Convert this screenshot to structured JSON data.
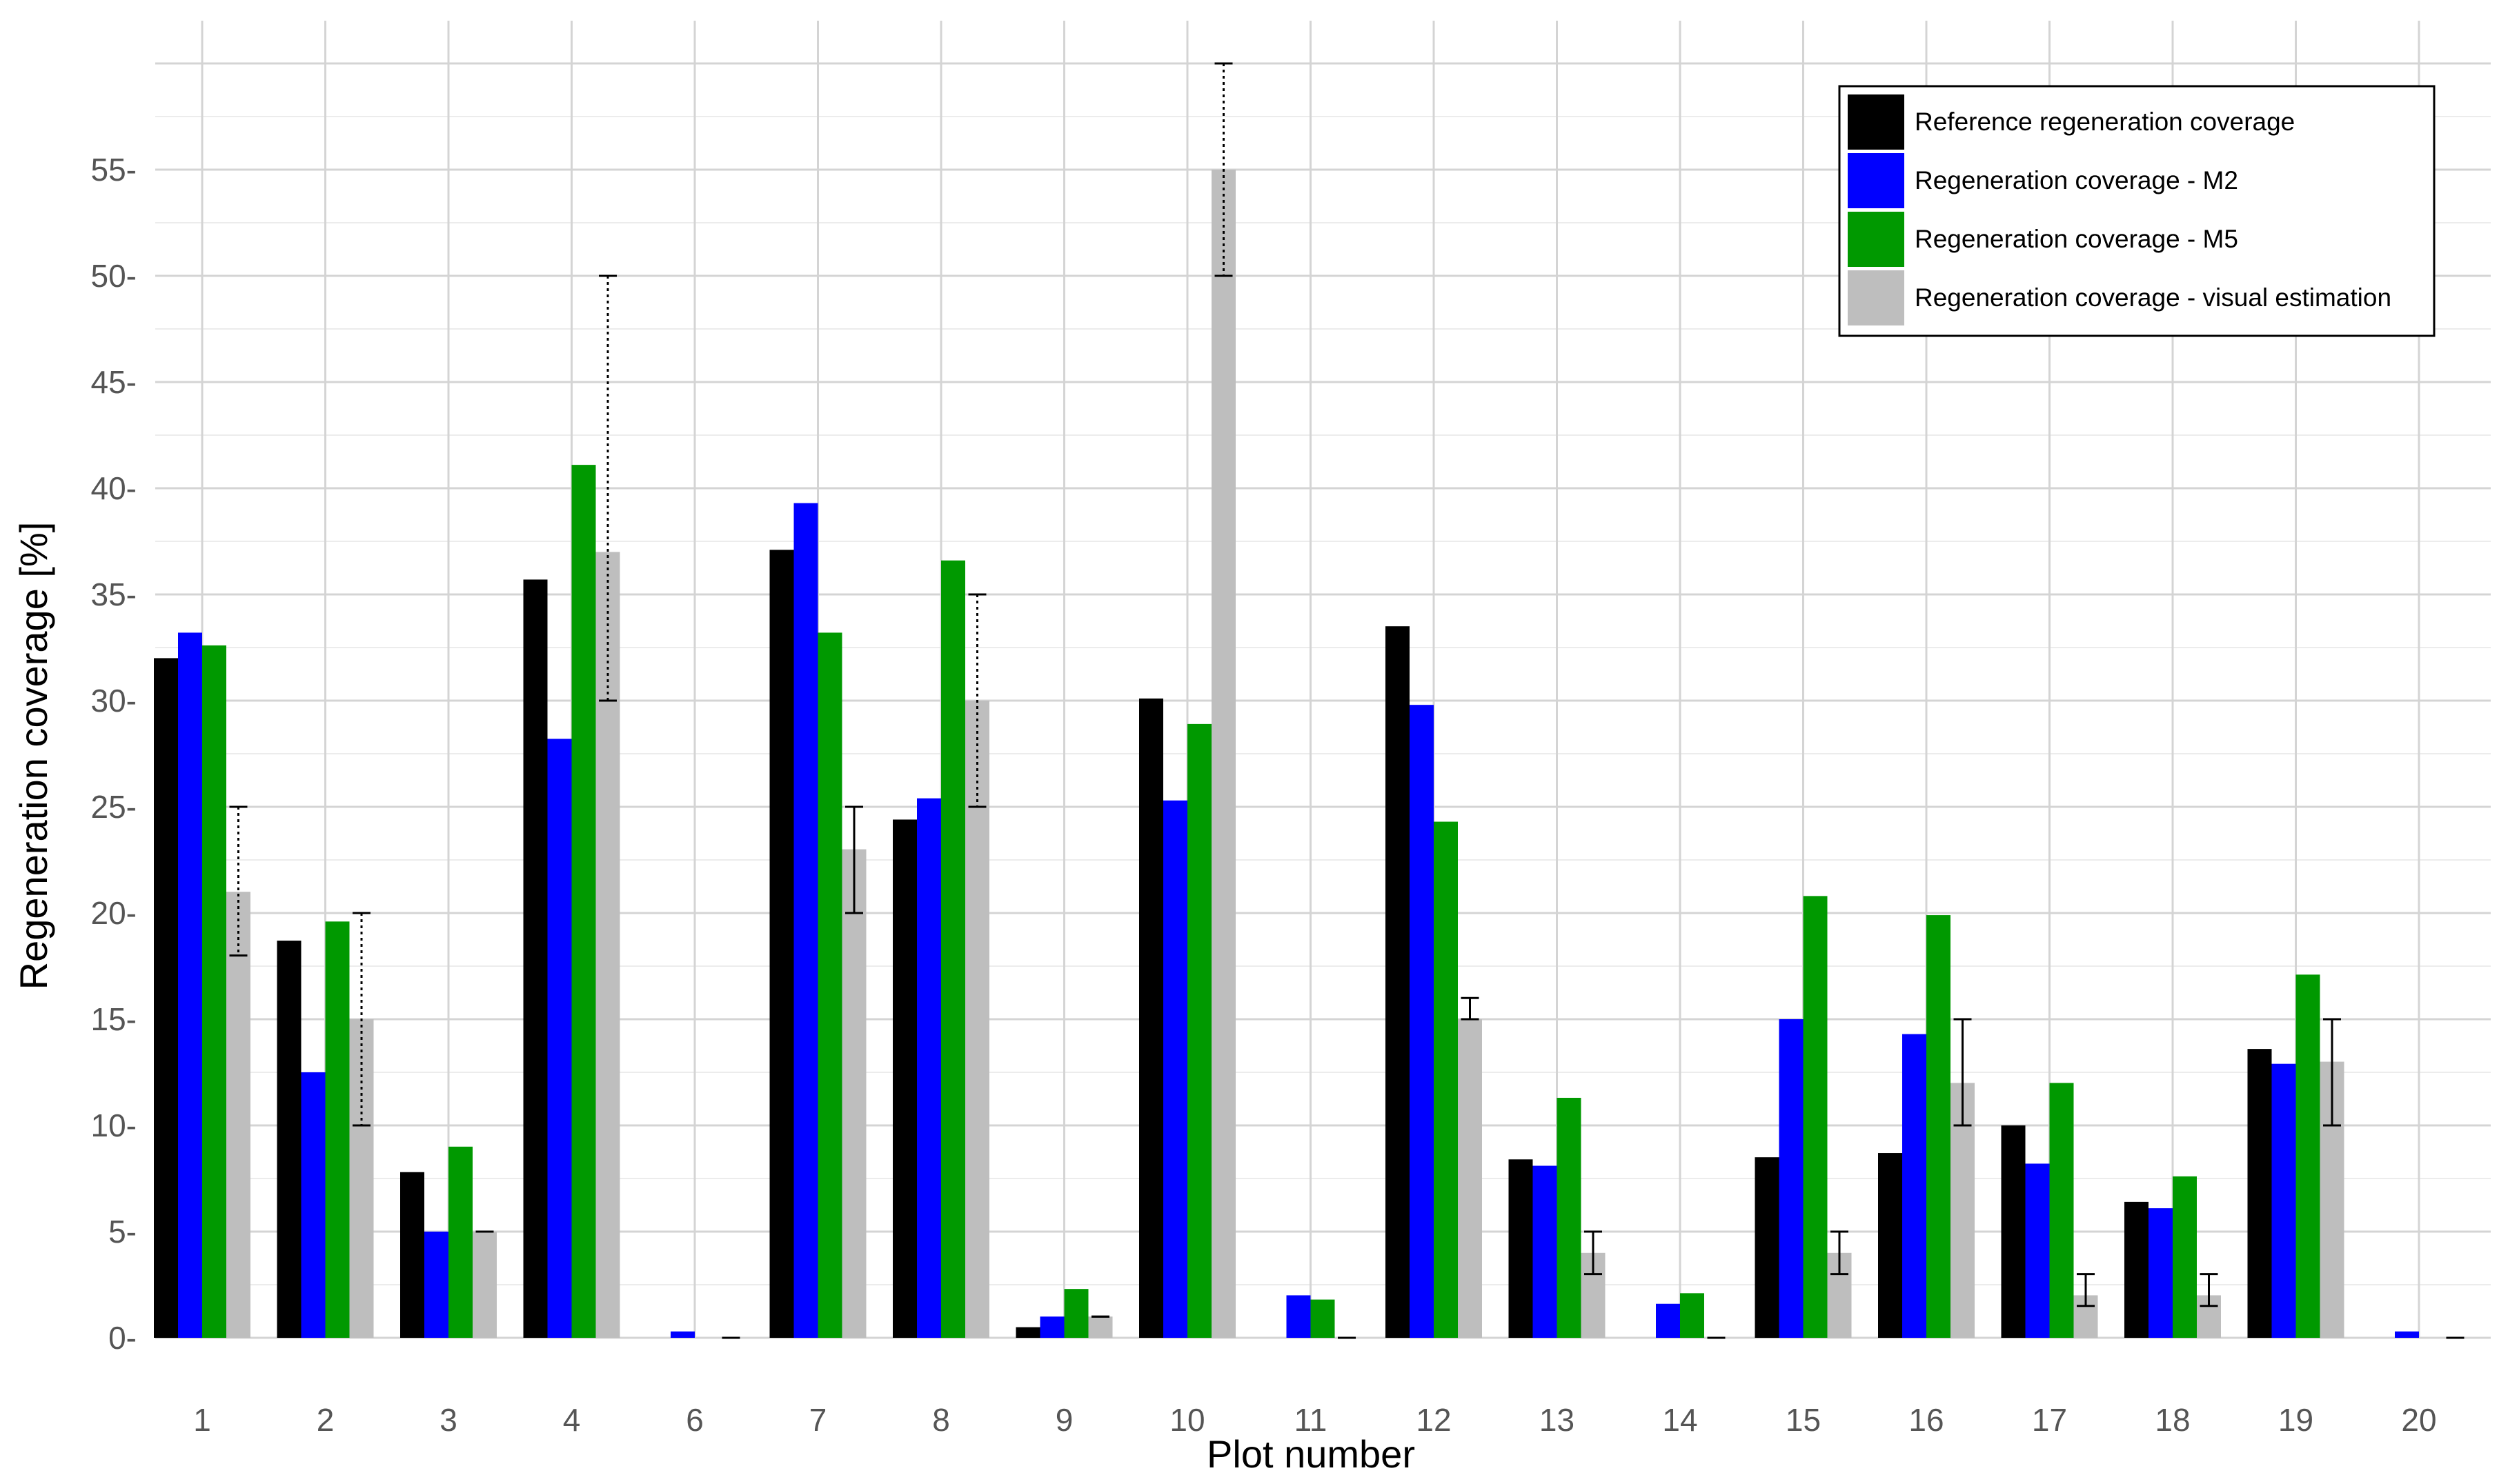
{
  "chart_data": {
    "type": "bar",
    "xlabel": "Plot number",
    "ylabel": "Regeneration coverage [%]",
    "ylim": [
      0,
      60
    ],
    "yticks": [
      0,
      5,
      10,
      15,
      20,
      25,
      30,
      35,
      40,
      45,
      50,
      55
    ],
    "ytick_labels": [
      "0-",
      "5-",
      "10-",
      "15-",
      "20-",
      "25-",
      "30-",
      "35-",
      "40-",
      "45-",
      "50-",
      "55-"
    ],
    "grid": true,
    "legend_position": "top-right",
    "categories": [
      "1",
      "2",
      "3",
      "4",
      "6",
      "7",
      "8",
      "9",
      "10",
      "11",
      "12",
      "13",
      "14",
      "15",
      "16",
      "17",
      "18",
      "19",
      "20"
    ],
    "series": [
      {
        "name": "Reference regeneration coverage",
        "color": "#000000",
        "values": [
          32.0,
          18.7,
          7.8,
          35.7,
          0,
          37.1,
          24.4,
          0.5,
          30.1,
          0,
          33.5,
          8.4,
          0,
          8.5,
          8.7,
          10.0,
          6.4,
          13.6,
          0
        ]
      },
      {
        "name": "Regeneration coverage - M2",
        "color": "#0000ff",
        "values": [
          33.2,
          12.5,
          5.0,
          28.2,
          0.3,
          39.3,
          25.4,
          1.0,
          25.3,
          2.0,
          29.8,
          8.1,
          1.6,
          15.0,
          14.3,
          8.2,
          6.1,
          12.9,
          0.3
        ]
      },
      {
        "name": "Regeneration coverage - M5",
        "color": "#009900",
        "values": [
          32.6,
          19.6,
          9.0,
          41.1,
          0,
          33.2,
          36.6,
          2.3,
          28.9,
          1.8,
          24.3,
          11.3,
          2.1,
          20.8,
          19.9,
          12.0,
          7.6,
          17.1,
          0
        ]
      },
      {
        "name": "Regeneration coverage - visual estimation",
        "color": "#bebebe",
        "values": [
          21,
          15,
          5,
          37,
          0,
          23,
          30,
          1,
          55,
          0,
          15,
          4,
          0,
          4,
          12,
          2,
          2,
          13,
          0
        ],
        "error_low": [
          18,
          10,
          5,
          30,
          0,
          20,
          25,
          1,
          50,
          0,
          15,
          3,
          0,
          3,
          10,
          1.5,
          1.5,
          10,
          0
        ],
        "error_high": [
          25,
          20,
          5,
          50,
          0,
          25,
          35,
          1,
          60,
          0,
          16,
          5,
          0,
          5,
          15,
          3,
          3,
          15,
          0
        ],
        "error_style": [
          "dotted",
          "dotted",
          "solid",
          "dotted",
          "solid",
          "solid",
          "dotted",
          "solid",
          "dotted",
          "solid",
          "solid",
          "solid",
          "solid",
          "solid",
          "solid",
          "solid",
          "solid",
          "solid",
          "solid"
        ]
      }
    ]
  }
}
